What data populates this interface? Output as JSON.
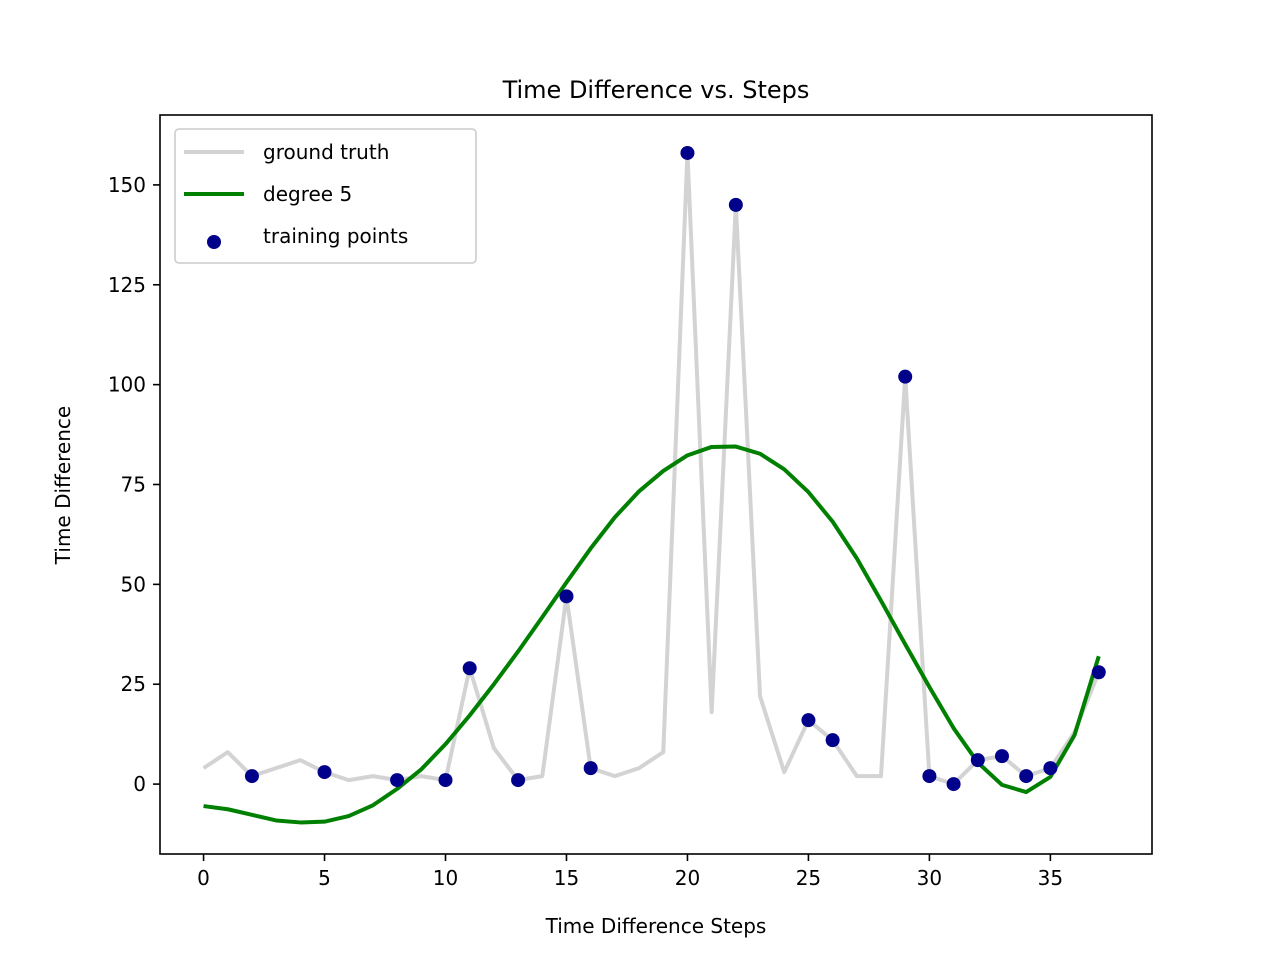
{
  "chart_data": {
    "type": "line",
    "title": "Time Difference vs. Steps",
    "xlabel": "Time Difference Steps",
    "ylabel": "Time Difference",
    "xlim": [
      -1.8,
      39.2
    ],
    "ylim": [
      -17.5,
      167.5
    ],
    "xticks": [
      0,
      5,
      10,
      15,
      20,
      25,
      30,
      35
    ],
    "yticks": [
      0,
      25,
      50,
      75,
      100,
      125,
      150
    ],
    "grid": false,
    "legend_position": "top-left",
    "series": [
      {
        "name": "ground truth",
        "kind": "line",
        "color": "#d3d3d3",
        "x": [
          0,
          1,
          2,
          3,
          4,
          5,
          6,
          7,
          8,
          9,
          10,
          11,
          12,
          13,
          14,
          15,
          16,
          17,
          18,
          19,
          20,
          21,
          22,
          23,
          24,
          25,
          26,
          27,
          28,
          29,
          30,
          31,
          32,
          33,
          34,
          35,
          36,
          37
        ],
        "y": [
          4,
          8,
          2,
          4,
          6,
          3,
          1,
          2,
          1,
          2,
          1,
          29,
          9,
          1,
          2,
          47,
          4,
          2,
          4,
          8,
          158,
          18,
          145,
          22,
          3,
          16,
          11,
          2,
          2,
          102,
          2,
          0,
          6,
          7,
          2,
          4,
          13,
          28
        ]
      },
      {
        "name": "degree 5",
        "kind": "line",
        "color": "#008000",
        "x": [
          0,
          1,
          2,
          3,
          4,
          5,
          6,
          7,
          8,
          9,
          10,
          11,
          12,
          13,
          14,
          15,
          16,
          17,
          18,
          19,
          20,
          21,
          22,
          23,
          24,
          25,
          26,
          27,
          28,
          29,
          30,
          31,
          32,
          33,
          34,
          35,
          36,
          37
        ],
        "y": [
          -5.5,
          -6.3,
          -7.7,
          -9.1,
          -9.6,
          -9.4,
          -8.0,
          -5.3,
          -1.2,
          3.7,
          10.0,
          17.2,
          25.0,
          33.2,
          41.8,
          50.5,
          59.0,
          66.8,
          73.3,
          78.4,
          82.3,
          84.4,
          84.5,
          82.7,
          78.8,
          73.1,
          65.7,
          56.5,
          45.9,
          35.0,
          24.3,
          14.0,
          5.4,
          -0.2,
          -2.0,
          1.8,
          12.3,
          32.0
        ]
      },
      {
        "name": "training points",
        "kind": "scatter",
        "color": "#00008b",
        "x": [
          2,
          5,
          8,
          10,
          11,
          13,
          15,
          16,
          20,
          22,
          25,
          26,
          29,
          30,
          31,
          32,
          33,
          34,
          35,
          37
        ],
        "y": [
          2,
          3,
          1,
          1,
          29,
          1,
          47,
          4,
          158,
          145,
          16,
          11,
          102,
          2,
          0,
          6,
          7,
          2,
          4,
          28
        ]
      }
    ]
  }
}
